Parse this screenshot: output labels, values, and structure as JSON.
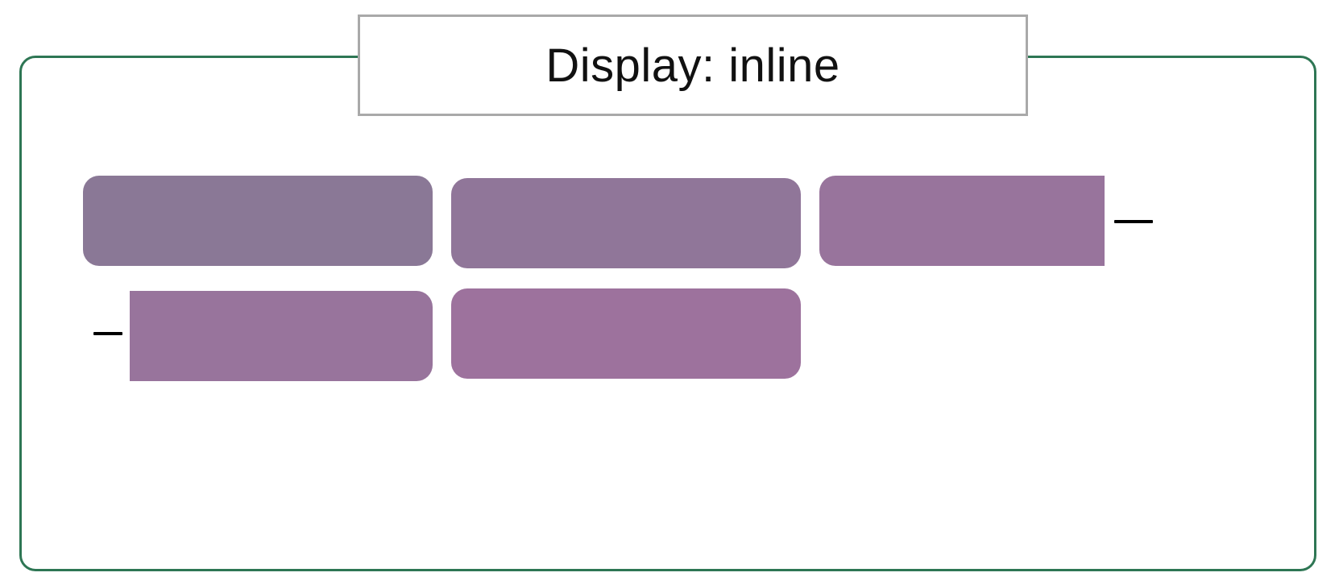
{
  "title": "Display: inline",
  "colors": {
    "frame_border": "#2e7654",
    "title_border": "#a9a9a9",
    "box_1": "#8a7896",
    "box_2": "#907699",
    "box_3_fragment_a": "#98749c",
    "box_3_fragment_b": "#98749c",
    "box_4": "#9d729d",
    "line_break_marker": "#000000"
  },
  "diagram": {
    "rows": 2,
    "boxes": [
      {
        "id": "box-1",
        "row": 1,
        "fragment": "whole"
      },
      {
        "id": "box-2",
        "row": 1,
        "fragment": "whole"
      },
      {
        "id": "box-3",
        "row": 1,
        "fragment": "start"
      },
      {
        "id": "box-3",
        "row": 2,
        "fragment": "end"
      },
      {
        "id": "box-4",
        "row": 2,
        "fragment": "whole"
      }
    ]
  }
}
